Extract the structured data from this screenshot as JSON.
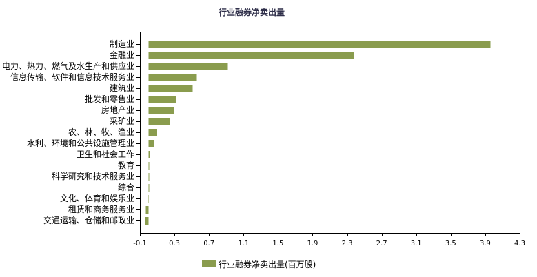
{
  "chart_data": {
    "type": "bar",
    "orientation": "horizontal",
    "title": "行业融券净卖出量",
    "categories": [
      "制造业",
      "金融业",
      "电力、热力、燃气及水生产和供应业",
      "信息传输、软件和信息技术服务业",
      "建筑业",
      "批发和零售业",
      "房地产业",
      "采矿业",
      "农、林、牧、渔业",
      "水利、环境和公共设施管理业",
      "卫生和社会工作",
      "教育",
      "科学研究和技术服务业",
      "综合",
      "文化、体育和娱乐业",
      "租赁和商务服务业",
      "交通运输、仓储和邮政业"
    ],
    "series": [
      {
        "name": "行业融券净卖出量(百万股)",
        "color": "#8a9c4e",
        "values": [
          3.96,
          2.38,
          0.92,
          0.56,
          0.51,
          0.32,
          0.29,
          0.25,
          0.1,
          0.06,
          0.02,
          0.008,
          0.006,
          0.004,
          -0.012,
          -0.033,
          -0.037
        ]
      }
    ],
    "xlim": [
      -0.1,
      4.3
    ],
    "xticks": [
      -0.1,
      0.3,
      0.7,
      1.1,
      1.5,
      1.9,
      2.3,
      2.7,
      3.1,
      3.5,
      3.9,
      4.3
    ],
    "grid": false,
    "legend": "bottom"
  }
}
